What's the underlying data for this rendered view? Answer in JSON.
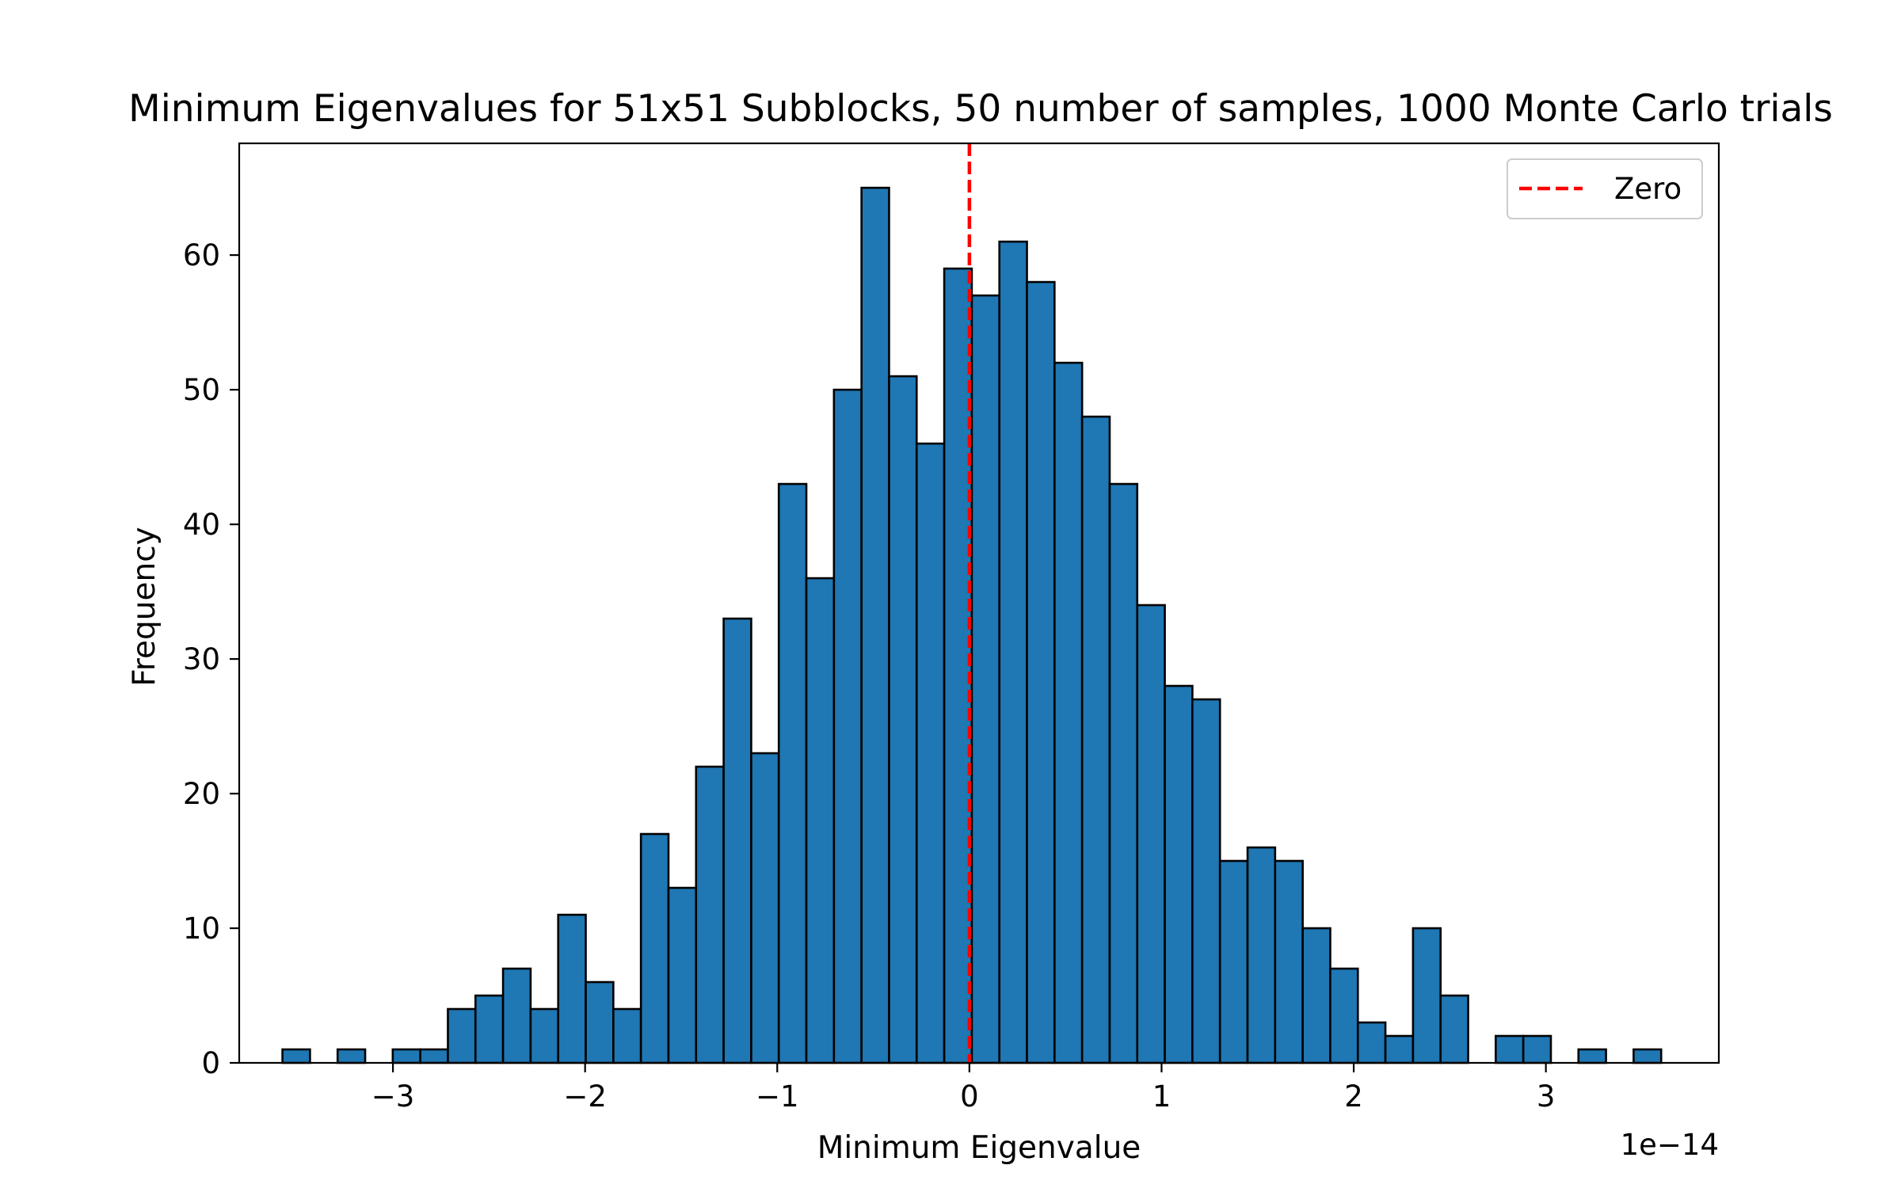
{
  "chart_data": {
    "type": "bar",
    "title": "Minimum Eigenvalues for 51x51 Subblocks, 50 number of samples, 1000 Monte Carlo trials",
    "xlabel": "Minimum Eigenvalue",
    "ylabel": "Frequency",
    "x_offset_label": "1e−14",
    "xlim": [
      -3.8,
      3.9
    ],
    "ylim": [
      0,
      68.3
    ],
    "grid": false,
    "legend_position": "upper-right",
    "x_ticks": [
      {
        "value": -3,
        "label": "−3"
      },
      {
        "value": -2,
        "label": "−2"
      },
      {
        "value": -1,
        "label": "−1"
      },
      {
        "value": 0,
        "label": "0"
      },
      {
        "value": 1,
        "label": "1"
      },
      {
        "value": 2,
        "label": "2"
      },
      {
        "value": 3,
        "label": "3"
      }
    ],
    "y_ticks": [
      {
        "value": 0,
        "label": "0"
      },
      {
        "value": 10,
        "label": "10"
      },
      {
        "value": 20,
        "label": "20"
      },
      {
        "value": 30,
        "label": "30"
      },
      {
        "value": 40,
        "label": "40"
      },
      {
        "value": 50,
        "label": "50"
      },
      {
        "value": 60,
        "label": "60"
      }
    ],
    "bins": {
      "start": -3.575,
      "width": 0.1435,
      "counts": [
        1,
        0,
        1,
        0,
        1,
        1,
        4,
        5,
        7,
        4,
        11,
        6,
        4,
        17,
        13,
        22,
        33,
        23,
        43,
        36,
        50,
        65,
        51,
        46,
        59,
        57,
        61,
        58,
        52,
        48,
        43,
        34,
        28,
        27,
        15,
        16,
        15,
        10,
        7,
        3,
        2,
        10,
        5,
        0,
        2,
        2,
        0,
        1,
        0,
        1
      ]
    },
    "series": [
      {
        "color": "#1f77b4",
        "edge_color": "#000000"
      }
    ],
    "reference_lines": [
      {
        "name": "Zero",
        "x": 0,
        "color": "#ff0000",
        "style": "dashed"
      }
    ],
    "legend": [
      {
        "label": "Zero",
        "color": "#ff0000",
        "style": "dashed"
      }
    ]
  }
}
